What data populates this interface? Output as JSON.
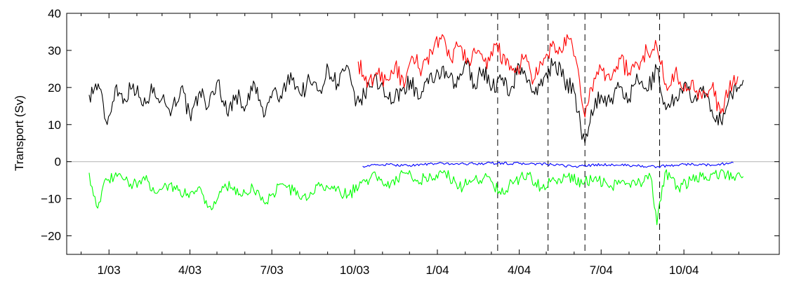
{
  "chart_data": {
    "type": "line",
    "title": "",
    "xlabel": "",
    "ylabel": "Transport (Sv)",
    "xlim": [
      "2002-11-15",
      "2005-01-15"
    ],
    "ylim": [
      -25,
      40
    ],
    "x_ticks": [
      "1/03",
      "4/03",
      "7/03",
      "10/03",
      "1/04",
      "4/04",
      "7/04",
      "10/04"
    ],
    "x_tick_dates": [
      "2003-01-01",
      "2003-04-01",
      "2003-07-01",
      "2003-10-01",
      "2004-01-01",
      "2004-04-01",
      "2004-07-01",
      "2004-10-01"
    ],
    "y_ticks": [
      40,
      30,
      20,
      10,
      0,
      -10,
      -20
    ],
    "y_tick_labels": [
      "40",
      "30",
      "20",
      "10",
      "0",
      "−10",
      "−20"
    ],
    "minor_x_tick_dates": [
      "2002-12-01",
      "2003-02-01",
      "2003-03-01",
      "2003-05-01",
      "2003-06-01",
      "2003-08-01",
      "2003-09-01",
      "2003-11-01",
      "2003-12-01",
      "2004-02-01",
      "2004-03-01",
      "2004-05-01",
      "2004-06-01",
      "2004-08-01",
      "2004-09-01",
      "2004-11-01",
      "2004-12-01"
    ],
    "zero_line": 0,
    "vlines": [
      "2004-03-08",
      "2004-05-03",
      "2004-06-13",
      "2004-09-04"
    ],
    "grid": false,
    "series": [
      {
        "color": "#000000",
        "x": [
          "2002-12-10",
          "2002-12-20",
          "2002-12-30",
          "2003-01-08",
          "2003-01-18",
          "2003-01-28",
          "2003-02-08",
          "2003-02-20",
          "2003-03-01",
          "2003-03-12",
          "2003-03-22",
          "2003-04-02",
          "2003-04-12",
          "2003-04-22",
          "2003-05-02",
          "2003-05-12",
          "2003-05-22",
          "2003-06-02",
          "2003-06-12",
          "2003-06-22",
          "2003-07-02",
          "2003-07-12",
          "2003-07-22",
          "2003-08-02",
          "2003-08-12",
          "2003-08-22",
          "2003-09-02",
          "2003-09-12",
          "2003-09-22",
          "2003-10-02",
          "2003-10-12",
          "2003-10-22",
          "2003-11-02",
          "2003-11-12",
          "2003-11-22",
          "2003-12-02",
          "2003-12-12",
          "2003-12-22",
          "2004-01-02",
          "2004-01-12",
          "2004-01-22",
          "2004-02-01",
          "2004-02-11",
          "2004-02-21",
          "2004-03-02",
          "2004-03-12",
          "2004-03-22",
          "2004-04-01",
          "2004-04-11",
          "2004-04-21",
          "2004-05-01",
          "2004-05-11",
          "2004-05-21",
          "2004-06-01",
          "2004-06-08",
          "2004-06-13",
          "2004-06-20",
          "2004-07-01",
          "2004-07-11",
          "2004-07-21",
          "2004-08-01",
          "2004-08-11",
          "2004-08-21",
          "2004-09-01",
          "2004-09-11",
          "2004-09-21",
          "2004-10-01",
          "2004-10-11",
          "2004-10-21",
          "2004-11-01",
          "2004-11-11",
          "2004-11-20",
          "2004-11-30",
          "2004-12-06"
        ],
        "values": [
          18,
          21,
          10,
          20,
          17,
          21,
          15,
          20,
          17,
          14,
          20,
          11,
          19,
          15,
          22,
          13,
          18,
          15,
          21,
          12,
          19,
          17,
          24,
          18,
          22,
          19,
          25,
          21,
          26,
          15,
          18,
          22,
          20,
          16,
          19,
          22,
          17,
          21,
          24,
          23,
          20,
          27,
          21,
          25,
          20,
          22,
          19,
          26,
          22,
          18,
          24,
          27,
          22,
          19,
          10,
          5,
          14,
          18,
          16,
          20,
          17,
          22,
          19,
          25,
          14,
          17,
          21,
          16,
          19,
          14,
          11,
          17,
          20,
          22
        ]
      },
      {
        "color": "#ff0000",
        "x": [
          "2003-10-05",
          "2003-10-15",
          "2003-10-25",
          "2003-11-05",
          "2003-11-15",
          "2003-11-25",
          "2003-12-05",
          "2003-12-15",
          "2003-12-25",
          "2004-01-05",
          "2004-01-15",
          "2004-01-25",
          "2004-02-05",
          "2004-02-15",
          "2004-02-25",
          "2004-03-07",
          "2004-03-17",
          "2004-03-27",
          "2004-04-07",
          "2004-04-17",
          "2004-04-27",
          "2004-05-07",
          "2004-05-17",
          "2004-05-27",
          "2004-06-07",
          "2004-06-13",
          "2004-06-20",
          "2004-07-01",
          "2004-07-11",
          "2004-07-21",
          "2004-08-01",
          "2004-08-11",
          "2004-08-21",
          "2004-09-01",
          "2004-09-11",
          "2004-09-21",
          "2004-10-01",
          "2004-10-11",
          "2004-10-21",
          "2004-11-01",
          "2004-11-11",
          "2004-11-20",
          "2004-11-30"
        ],
        "values": [
          27,
          20,
          24,
          22,
          26,
          20,
          28,
          25,
          30,
          33,
          28,
          31,
          27,
          30,
          25,
          32,
          26,
          24,
          28,
          22,
          26,
          31,
          30,
          33,
          22,
          12,
          20,
          25,
          22,
          28,
          24,
          26,
          30,
          31,
          21,
          24,
          19,
          22,
          17,
          20,
          13,
          19,
          23
        ]
      },
      {
        "color": "#0000ff",
        "x": [
          "2003-10-10",
          "2003-11-01",
          "2003-12-01",
          "2004-01-01",
          "2004-02-01",
          "2004-03-01",
          "2004-04-01",
          "2004-05-01",
          "2004-06-01",
          "2004-07-01",
          "2004-08-01",
          "2004-09-01",
          "2004-10-01",
          "2004-11-01",
          "2004-11-25"
        ],
        "values": [
          -1.2,
          -0.8,
          -1.0,
          -0.5,
          -0.6,
          -0.4,
          -0.5,
          -0.7,
          -1.3,
          -0.8,
          -1.0,
          -1.4,
          -0.7,
          -0.9,
          -0.3
        ]
      },
      {
        "color": "#00ff00",
        "x": [
          "2002-12-10",
          "2002-12-18",
          "2002-12-30",
          "2003-01-10",
          "2003-01-25",
          "2003-02-10",
          "2003-02-25",
          "2003-03-10",
          "2003-03-25",
          "2003-04-10",
          "2003-04-25",
          "2003-05-10",
          "2003-05-25",
          "2003-06-10",
          "2003-06-25",
          "2003-07-10",
          "2003-07-25",
          "2003-08-10",
          "2003-08-25",
          "2003-09-10",
          "2003-09-25",
          "2003-10-10",
          "2003-10-25",
          "2003-11-10",
          "2003-11-25",
          "2003-12-10",
          "2003-12-25",
          "2004-01-10",
          "2004-01-25",
          "2004-02-10",
          "2004-02-25",
          "2004-03-10",
          "2004-03-25",
          "2004-04-10",
          "2004-04-25",
          "2004-05-10",
          "2004-05-25",
          "2004-06-10",
          "2004-06-25",
          "2004-07-10",
          "2004-07-25",
          "2004-08-10",
          "2004-08-25",
          "2004-09-01",
          "2004-09-10",
          "2004-09-25",
          "2004-10-10",
          "2004-10-25",
          "2004-11-10",
          "2004-11-25",
          "2004-12-06"
        ],
        "values": [
          -3,
          -12,
          -5,
          -4,
          -6,
          -5,
          -8,
          -6,
          -9,
          -7,
          -13,
          -6,
          -9,
          -7,
          -11,
          -6,
          -8,
          -10,
          -6,
          -8,
          -9,
          -5,
          -4,
          -6,
          -3,
          -5,
          -4,
          -3,
          -7,
          -5,
          -4,
          -8,
          -6,
          -3,
          -7,
          -5,
          -4,
          -6,
          -4,
          -7,
          -5,
          -6,
          -4,
          -17,
          -3,
          -7,
          -5,
          -4,
          -3,
          -4,
          -4
        ]
      }
    ]
  }
}
